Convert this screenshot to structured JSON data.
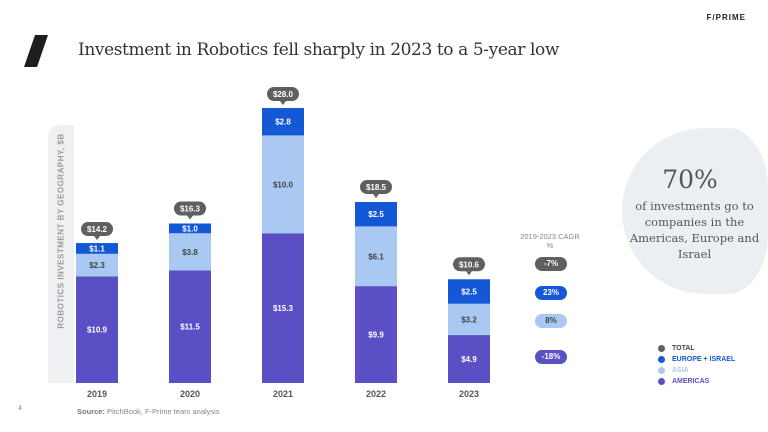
{
  "brand": "F/PRIME",
  "title": "Investment in Robotics fell sharply in 2023 to a 5-year low",
  "page_number": "4",
  "source_label": "Source:",
  "source_text": "PitchBook, F-Prime team analysis",
  "callout": {
    "big": "70%",
    "text": "of investments go to companies in the Americas, Europe and Israel"
  },
  "cagr": {
    "title": "2019-2023 CAGR %",
    "items": [
      {
        "label": "-7%",
        "color": "#5f5f5f",
        "text_color": "#ffffff"
      },
      {
        "label": "23%",
        "color": "#1558d6",
        "text_color": "#ffffff"
      },
      {
        "label": "8%",
        "color": "#a9c8f2",
        "text_color": "#444444"
      },
      {
        "label": "-18%",
        "color": "#5a4fc4",
        "text_color": "#ffffff"
      }
    ]
  },
  "legend": [
    {
      "label": "TOTAL",
      "color": "#5f5f5f"
    },
    {
      "label": "EUROPE + ISRAEL",
      "color": "#1558d6"
    },
    {
      "label": "ASIA",
      "color": "#a9c8f2"
    },
    {
      "label": "AMERICAS",
      "color": "#5a4fc4"
    }
  ],
  "chart_data": {
    "type": "bar",
    "stacked": true,
    "ylabel": "ROBOTICS INVESTMENT BY GEOGRAPHY, $B",
    "categories": [
      "2019",
      "2020",
      "2021",
      "2022",
      "2023"
    ],
    "series": [
      {
        "name": "AMERICAS",
        "color": "#5a4fc4",
        "values": [
          10.9,
          11.5,
          15.3,
          9.9,
          4.9
        ],
        "labels": [
          "$10.9",
          "$11.5",
          "$15.3",
          "$9.9",
          "$4.9"
        ]
      },
      {
        "name": "ASIA",
        "color": "#a9c8f2",
        "values": [
          2.3,
          3.8,
          10.0,
          6.1,
          3.2
        ],
        "labels": [
          "$2.3",
          "$3.8",
          "$10.0",
          "$6.1",
          "$3.2"
        ]
      },
      {
        "name": "EUROPE + ISRAEL",
        "color": "#1558d6",
        "values": [
          1.1,
          1.0,
          2.8,
          2.5,
          2.5
        ],
        "labels": [
          "$1.1",
          "$1.0",
          "$2.8",
          "$2.5",
          "$2.5"
        ]
      }
    ],
    "totals": [
      14.2,
      16.3,
      28.0,
      18.5,
      10.6
    ],
    "total_labels": [
      "$14.2",
      "$16.3",
      "$28.0",
      "$18.5",
      "$10.6"
    ],
    "total_color": "#5f5f5f",
    "ylim": [
      0,
      28
    ],
    "grid": false,
    "legend_position": "bottom-right"
  }
}
